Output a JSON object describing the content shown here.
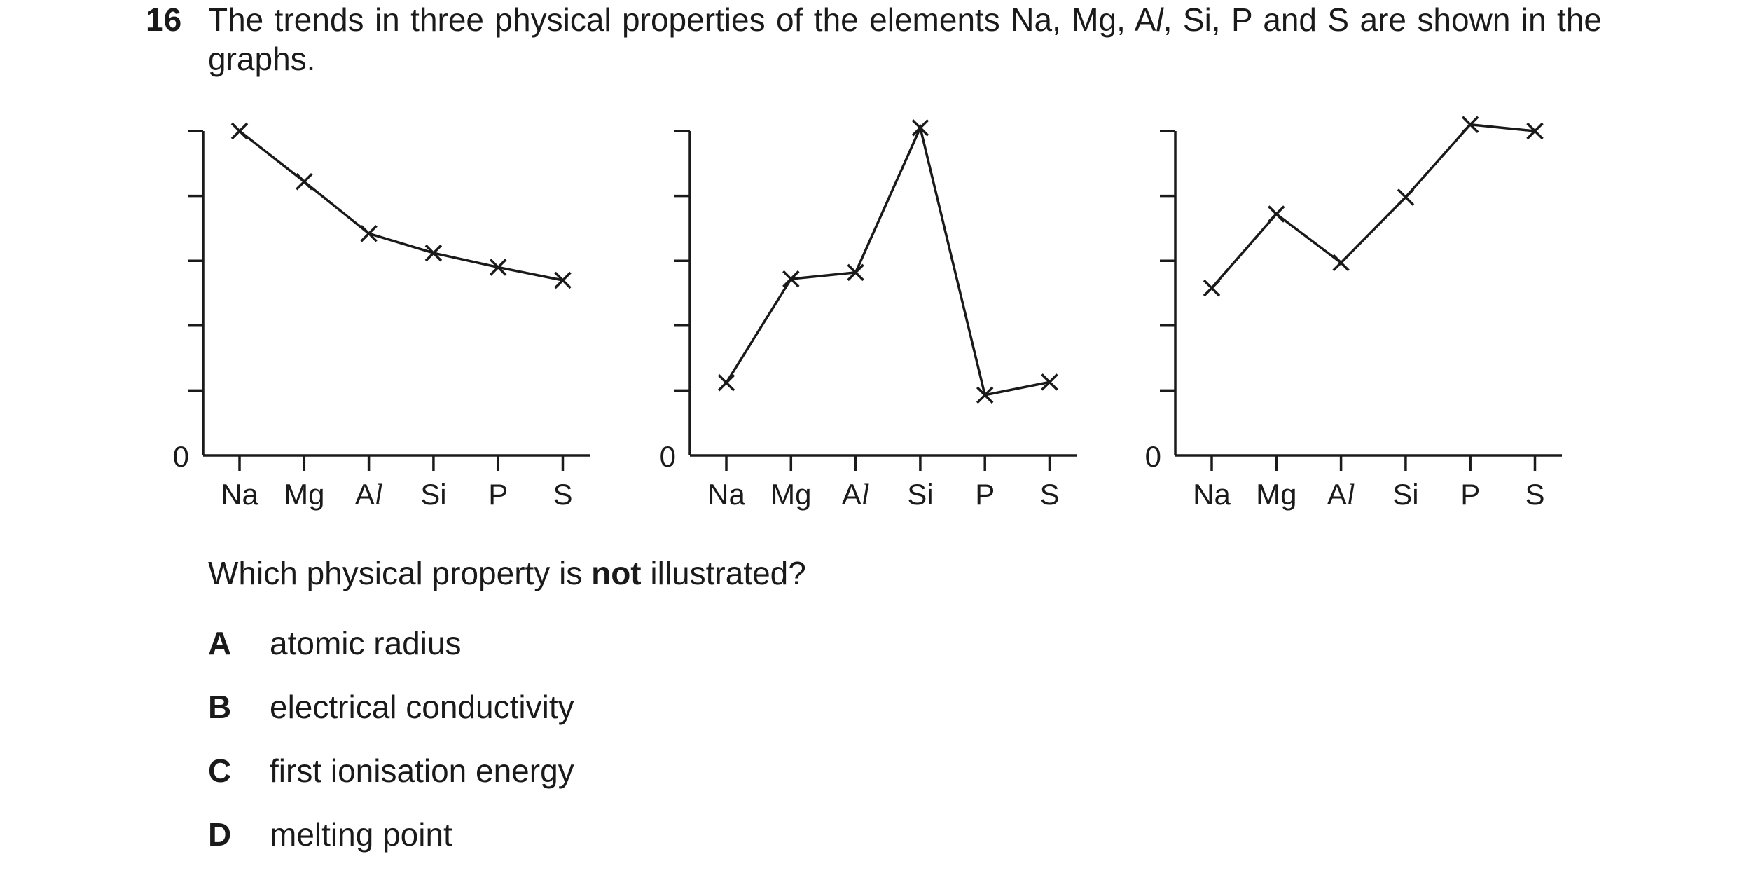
{
  "question": {
    "number": "16",
    "text_before_al": "The trends in three physical properties of the elements Na, Mg, A",
    "text_al_italic": "l",
    "text_after_al": ", Si, P and S are shown in the graphs."
  },
  "chart_data": [
    {
      "type": "line",
      "categories": [
        "Na",
        "Mg",
        "Al",
        "Si",
        "P",
        "S"
      ],
      "y_origin_label": "0",
      "ylim": [
        0,
        5
      ],
      "yticks": [
        1,
        2,
        3,
        4,
        5
      ],
      "series": [
        {
          "values": [
            5.0,
            4.22,
            3.42,
            3.12,
            2.9,
            2.7
          ]
        }
      ]
    },
    {
      "type": "line",
      "categories": [
        "Na",
        "Mg",
        "Al",
        "Si",
        "P",
        "S"
      ],
      "y_origin_label": "0",
      "ylim": [
        0,
        5
      ],
      "yticks": [
        1,
        2,
        3,
        4,
        5
      ],
      "series": [
        {
          "values": [
            1.12,
            2.72,
            2.82,
            5.05,
            0.93,
            1.13
          ]
        }
      ]
    },
    {
      "type": "line",
      "categories": [
        "Na",
        "Mg",
        "Al",
        "Si",
        "P",
        "S"
      ],
      "y_origin_label": "0",
      "ylim": [
        0,
        5
      ],
      "yticks": [
        1,
        2,
        3,
        4,
        5
      ],
      "series": [
        {
          "values": [
            2.58,
            3.72,
            2.97,
            3.98,
            5.1,
            5.0
          ]
        }
      ]
    }
  ],
  "prompt": {
    "before": "Which physical property is ",
    "bold": "not",
    "after": " illustrated?"
  },
  "options": [
    {
      "letter": "A",
      "text": "atomic radius"
    },
    {
      "letter": "B",
      "text": "electrical conductivity"
    },
    {
      "letter": "C",
      "text": "first ionisation energy"
    },
    {
      "letter": "D",
      "text": "melting point"
    }
  ]
}
